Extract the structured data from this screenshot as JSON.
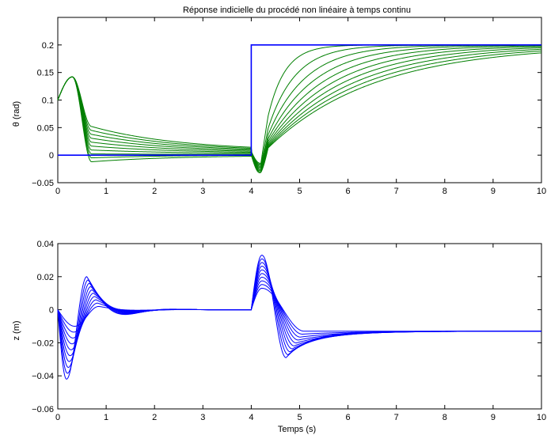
{
  "colors": {
    "green": "#007f00",
    "blue": "#0000ff",
    "axes": "#000000"
  },
  "chart_data": [
    {
      "type": "line",
      "title": "Réponse indicielle du procédé non linéaire à temps continu",
      "xlabel": "",
      "ylabel": "θ (rad)",
      "xlim": [
        0,
        10
      ],
      "ylim": [
        -0.05,
        0.25
      ],
      "xticks": [
        0,
        1,
        2,
        3,
        4,
        5,
        6,
        7,
        8,
        9,
        10
      ],
      "yticks": [
        -0.05,
        0,
        0.05,
        0.1,
        0.15,
        0.2
      ],
      "ytick_labels": [
        "−0.05",
        "0",
        "0.05",
        "0.1",
        "0.15",
        "0.2"
      ],
      "grid": false,
      "legend": "none",
      "reference": {
        "x": [
          0,
          4,
          4,
          10
        ],
        "y": [
          0,
          0,
          0.2,
          0.2
        ],
        "color": "blue"
      },
      "family": {
        "count": 10,
        "color": "green",
        "description_values": {
          "initial": 0.1,
          "first_peak_time": 0.15,
          "first_peak_value": 0.142,
          "dip_at_0_7_range": [
            -0.01,
            0.052
          ],
          "value_at_4_range": [
            0,
            0.007
          ],
          "second_dip_time": 4.2,
          "second_dip_range": [
            -0.032,
            -0.018
          ],
          "final_value": 0.2,
          "rise_time_constant_range": [
            0.35,
            2.2
          ]
        }
      }
    },
    {
      "type": "line",
      "title": "",
      "xlabel": "Temps (s)",
      "ylabel": "z (m)",
      "xlim": [
        0,
        10
      ],
      "ylim": [
        -0.06,
        0.04
      ],
      "xticks": [
        0,
        1,
        2,
        3,
        4,
        5,
        6,
        7,
        8,
        9,
        10
      ],
      "yticks": [
        -0.06,
        -0.04,
        -0.02,
        0,
        0.02,
        0.04
      ],
      "ytick_labels": [
        "−0.06",
        "−0.04",
        "−0.02",
        "0",
        "0.02",
        "0.04"
      ],
      "grid": false,
      "legend": "none",
      "family": {
        "count": 10,
        "color": "blue",
        "description_values": {
          "initial": 0,
          "first_min_time_range": [
            0.15,
            0.35
          ],
          "first_min_range": [
            -0.042,
            -0.01
          ],
          "first_max_time_range": [
            0.6,
            0.85
          ],
          "first_max_range": [
            0.002,
            0.02
          ],
          "value_4_0": 0,
          "second_peak_time": 4.22,
          "second_peak_range": [
            0.013,
            0.033
          ],
          "second_min_time_range": [
            4.7,
            5.1
          ],
          "second_min_range": [
            -0.029,
            -0.013
          ],
          "final_value": -0.013
        }
      }
    }
  ]
}
